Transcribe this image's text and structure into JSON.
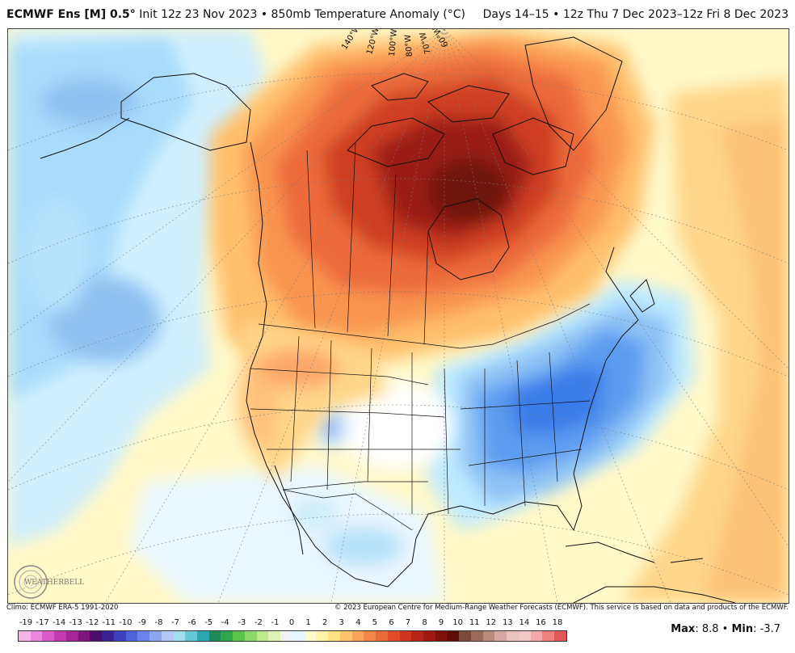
{
  "header": {
    "model": "ECMWF Ens [M] 0.5",
    "degree": "°",
    "init": "Init 12z 23 Nov 2023",
    "sep": "•",
    "field": "850mb Temperature Anomaly (°C)",
    "valid": "Days 14–15 • 12z Thu 7 Dec 2023–12z Fri 8 Dec 2023"
  },
  "map": {
    "longitude_labels": [
      "140°W",
      "120°W",
      "100°W",
      "80°W",
      "70°W",
      "60°W"
    ],
    "logo_text": "WEATHERBELL"
  },
  "footer": {
    "climo": "Climo: ECMWF ERA-5 1991-2020",
    "copyright": "© 2023 European Centre for Medium-Range Weather Forecasts (ECMWF). This service is based on data and products of the ECMWF."
  },
  "colorbar": {
    "labels": [
      "-19",
      "-17",
      "-14",
      "-13",
      "-12",
      "-11",
      "-10",
      "-9",
      "-8",
      "-7",
      "-6",
      "-5",
      "-4",
      "-3",
      "-2",
      "-1",
      "0",
      "1",
      "2",
      "3",
      "4",
      "5",
      "6",
      "7",
      "8",
      "9",
      "10",
      "11",
      "12",
      "13",
      "14",
      "16",
      "18"
    ],
    "colors": [
      "#f5b3e8",
      "#ea88dc",
      "#db5cc9",
      "#c43ab0",
      "#a52496",
      "#7d167a",
      "#4d0f6e",
      "#3a2090",
      "#3b3fc0",
      "#4f62d8",
      "#6b83e8",
      "#8ea6f0",
      "#b3c9f5",
      "#9fe0ec",
      "#63c9d6",
      "#2ea8b0",
      "#1e8a5a",
      "#2ea64a",
      "#5cc34a",
      "#8ed86a",
      "#bde98f",
      "#dff3b8",
      "#f2f2f2",
      "#e6f5ff",
      "#fffbd0",
      "#fff3a8",
      "#ffe083",
      "#fdc46c",
      "#f9a65a",
      "#f3874a",
      "#eb6a3c",
      "#e04b2c",
      "#cf3420",
      "#b82518",
      "#9c1a10",
      "#7d120a",
      "#5e0c06",
      "#7a4a3a",
      "#9a6a5a",
      "#b88a7a",
      "#d4a8a0",
      "#e8c4c0",
      "#f0c8c8",
      "#f4a8a8",
      "#ee8080",
      "#e05858"
    ],
    "stats_max_label": "Max",
    "stats_max": "8.8",
    "stats_min_label": "Min",
    "stats_min": "-3.7"
  }
}
